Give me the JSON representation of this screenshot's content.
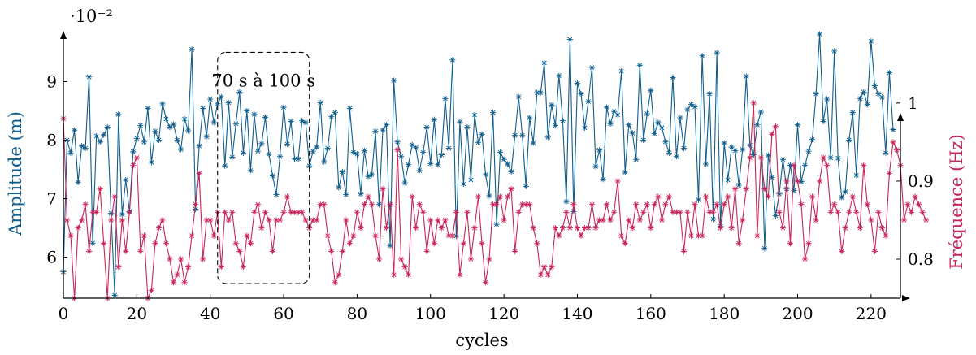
{
  "chart_data": {
    "type": "line",
    "xlabel": "cycles",
    "x_range": [
      0,
      228
    ],
    "x_ticks": [
      0,
      20,
      40,
      60,
      80,
      100,
      120,
      140,
      160,
      180,
      200,
      220
    ],
    "grid": false,
    "legend": "none",
    "left_axis": {
      "label": "Amplitude (m)",
      "multiplier_label": "·10⁻²",
      "range": [
        5.3,
        9.7
      ],
      "ticks": [
        6,
        7,
        8,
        9
      ],
      "color": "#0f5e8c"
    },
    "right_axis": {
      "label": "Fréquence (Hz)",
      "range": [
        0.75,
        1.08
      ],
      "ticks": [
        0.8,
        0.9,
        1
      ],
      "color": "#c8245a"
    },
    "annotation": {
      "text": "70 s à 100 s",
      "x_range": [
        42,
        67
      ],
      "y_range": [
        5.55,
        9.5
      ]
    },
    "series": [
      {
        "axis": "left",
        "color": "#0f5e8c",
        "values": [
          5.75,
          8.0,
          7.78,
          8.17,
          7.28,
          7.9,
          7.86,
          9.08,
          6.24,
          8.07,
          7.97,
          8.09,
          8.22,
          6.75,
          5.35,
          8.44,
          6.73,
          7.32,
          6.78,
          7.8,
          8.03,
          8.25,
          7.97,
          8.54,
          7.62,
          8.15,
          8.0,
          8.62,
          8.36,
          8.22,
          8.27,
          8.0,
          7.84,
          8.36,
          8.16,
          9.55,
          6.82,
          7.9,
          8.54,
          8.06,
          8.7,
          8.3,
          8.62,
          8.74,
          7.56,
          8.64,
          7.71,
          8.28,
          8.82,
          7.78,
          8.5,
          7.48,
          8.44,
          7.81,
          7.94,
          8.39,
          7.76,
          7.39,
          7.07,
          7.72,
          8.56,
          7.93,
          8.32,
          7.68,
          7.68,
          8.33,
          8.3,
          7.56,
          7.81,
          7.88,
          8.64,
          7.63,
          7.86,
          8.4,
          8.47,
          7.19,
          7.46,
          7.07,
          8.54,
          7.79,
          7.76,
          7.08,
          7.82,
          7.38,
          7.41,
          8.15,
          6.9,
          8.17,
          8.26,
          6.2,
          9.02,
          7.97,
          7.72,
          7.27,
          7.58,
          7.92,
          7.87,
          7.48,
          7.79,
          8.22,
          7.6,
          8.35,
          7.58,
          7.75,
          8.71,
          7.86,
          9.37,
          6.36,
          8.31,
          7.25,
          8.22,
          7.32,
          8.43,
          7.96,
          8.1,
          7.41,
          7.05,
          8.47,
          6.56,
          7.79,
          7.67,
          7.59,
          7.46,
          8.08,
          8.74,
          8.08,
          7.21,
          8.38,
          7.95,
          8.81,
          8.81,
          9.32,
          8.05,
          8.6,
          8.25,
          9.1,
          8.33,
          6.95,
          9.72,
          6.78,
          8.97,
          8.79,
          8.21,
          8.66,
          9.24,
          7.55,
          7.83,
          7.33,
          8.56,
          8.28,
          8.49,
          8.43,
          9.18,
          7.45,
          8.26,
          8.12,
          7.67,
          9.28,
          8.0,
          8.45,
          8.85,
          8.11,
          8.3,
          8.21,
          7.97,
          7.78,
          9.07,
          7.72,
          8.38,
          7.86,
          8.52,
          8.61,
          8.57,
          6.98,
          9.44,
          7.59,
          8.79,
          6.65,
          9.49,
          6.53,
          7.95,
          7.32,
          7.88,
          7.82,
          7.23,
          7.84,
          9.09,
          7.91,
          7.75,
          8.26,
          8.48,
          6.15,
          7.74,
          7.36,
          6.71,
          7.08,
          7.67,
          7.17,
          7.57,
          7.14,
          8.26,
          7.29,
          7.57,
          7.81,
          8.01,
          8.79,
          9.81,
          8.32,
          8.7,
          7.7,
          9.52,
          7.69,
          7.02,
          7.12,
          8.0,
          8.47,
          7.4,
          8.71,
          8.82,
          8.61,
          9.69,
          8.93,
          8.79,
          8.73,
          7.78,
          9.15,
          8.18
        ]
      },
      {
        "axis": "right",
        "color": "#c8245a",
        "values": [
          0.98,
          0.85,
          0.83,
          0.75,
          0.84,
          0.85,
          0.87,
          0.81,
          0.86,
          0.86,
          0.89,
          0.82,
          0.75,
          0.85,
          0.88,
          0.79,
          0.85,
          0.81,
          0.86,
          0.92,
          0.93,
          0.81,
          0.83,
          0.75,
          0.76,
          0.82,
          0.84,
          0.85,
          0.82,
          0.8,
          0.77,
          0.78,
          0.8,
          0.77,
          0.79,
          0.83,
          0.87,
          0.91,
          0.8,
          0.85,
          0.85,
          0.83,
          0.86,
          0.79,
          0.86,
          0.85,
          0.86,
          0.82,
          0.81,
          0.79,
          0.83,
          0.82,
          0.86,
          0.87,
          0.84,
          0.86,
          0.85,
          0.81,
          0.85,
          0.85,
          0.86,
          0.88,
          0.86,
          0.86,
          0.86,
          0.86,
          0.85,
          0.84,
          0.85,
          0.85,
          0.87,
          0.87,
          0.83,
          0.81,
          0.77,
          0.78,
          0.81,
          0.85,
          0.82,
          0.83,
          0.86,
          0.84,
          0.87,
          0.88,
          0.87,
          0.83,
          0.8,
          0.89,
          0.84,
          0.87,
          0.78,
          0.94,
          0.8,
          0.79,
          0.78,
          0.88,
          0.84,
          0.87,
          0.86,
          0.81,
          0.85,
          0.82,
          0.85,
          0.84,
          0.85,
          0.83,
          0.83,
          0.86,
          0.78,
          0.82,
          0.86,
          0.8,
          0.84,
          0.88,
          0.82,
          0.77,
          0.8,
          0.87,
          0.87,
          0.88,
          0.85,
          0.88,
          0.89,
          0.81,
          0.86,
          0.87,
          0.87,
          0.87,
          0.84,
          0.82,
          0.78,
          0.79,
          0.78,
          0.79,
          0.84,
          0.83,
          0.84,
          0.86,
          0.84,
          0.87,
          0.84,
          0.83,
          0.84,
          0.84,
          0.87,
          0.84,
          0.85,
          0.85,
          0.87,
          0.85,
          0.86,
          0.9,
          0.83,
          0.82,
          0.85,
          0.84,
          0.87,
          0.85,
          0.86,
          0.87,
          0.84,
          0.87,
          0.88,
          0.85,
          0.87,
          0.88,
          0.86,
          0.86,
          0.86,
          0.81,
          0.86,
          0.83,
          0.87,
          0.83,
          0.83,
          0.88,
          0.86,
          0.86,
          0.87,
          0.84,
          0.87,
          0.88,
          0.84,
          0.89,
          0.82,
          0.85,
          0.89,
          0.93,
          1.0,
          0.83,
          0.93,
          0.89,
          0.88,
          0.96,
          0.97,
          0.86,
          0.84,
          0.9,
          0.82,
          0.92,
          0.9,
          0.87,
          0.8,
          0.82,
          0.88,
          0.85,
          0.9,
          0.93,
          0.92,
          0.86,
          0.87,
          0.86,
          0.81,
          0.84,
          0.86,
          0.88,
          0.86,
          0.84,
          0.92,
          0.87,
          0.85,
          0.81,
          0.86,
          0.84,
          0.83,
          0.91,
          0.95,
          0.94,
          0.92,
          0.85,
          0.87,
          0.86,
          0.88,
          0.87,
          0.86,
          0.85
        ]
      }
    ]
  }
}
